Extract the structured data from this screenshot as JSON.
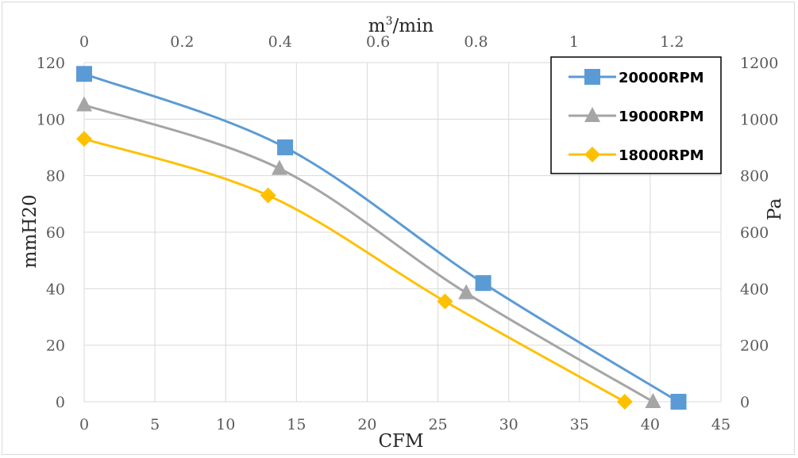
{
  "chart_data": {
    "type": "line",
    "xlabel": "CFM",
    "x2label": "m3/min",
    "ylabel": "mmH20",
    "y2label": "Pa",
    "xlim": [
      0,
      45
    ],
    "x2lim": [
      0,
      1.3
    ],
    "ylim": [
      0,
      120
    ],
    "y2lim": [
      0,
      1200
    ],
    "x_ticks": [
      "0",
      "5",
      "10",
      "15",
      "20",
      "25",
      "30",
      "35",
      "40",
      "45"
    ],
    "x2_ticks": [
      "0",
      "0.2",
      "0.4",
      "0.6",
      "0.8",
      "1",
      "1.2"
    ],
    "y_ticks": [
      "0",
      "20",
      "40",
      "60",
      "80",
      "100",
      "120"
    ],
    "y2_ticks": [
      "0",
      "200",
      "400",
      "600",
      "800",
      "1000",
      "1200"
    ],
    "grid": "vertical-and-horizontal",
    "legend_position": "top-right",
    "series": [
      {
        "name": "20000RPM",
        "color": "#5b9bd5",
        "marker": "square",
        "x": [
          0,
          14.2,
          28.2,
          42
        ],
        "y": [
          116,
          90,
          42,
          0
        ]
      },
      {
        "name": "19000RPM",
        "color": "#a5a5a5",
        "marker": "triangle",
        "x": [
          0,
          13.8,
          27,
          40.2
        ],
        "y": [
          105,
          82.5,
          38.5,
          0
        ]
      },
      {
        "name": "18000RPM",
        "color": "#ffc000",
        "marker": "diamond",
        "x": [
          0,
          13,
          25.5,
          38.2
        ],
        "y": [
          93,
          73,
          35.5,
          0
        ]
      }
    ]
  }
}
